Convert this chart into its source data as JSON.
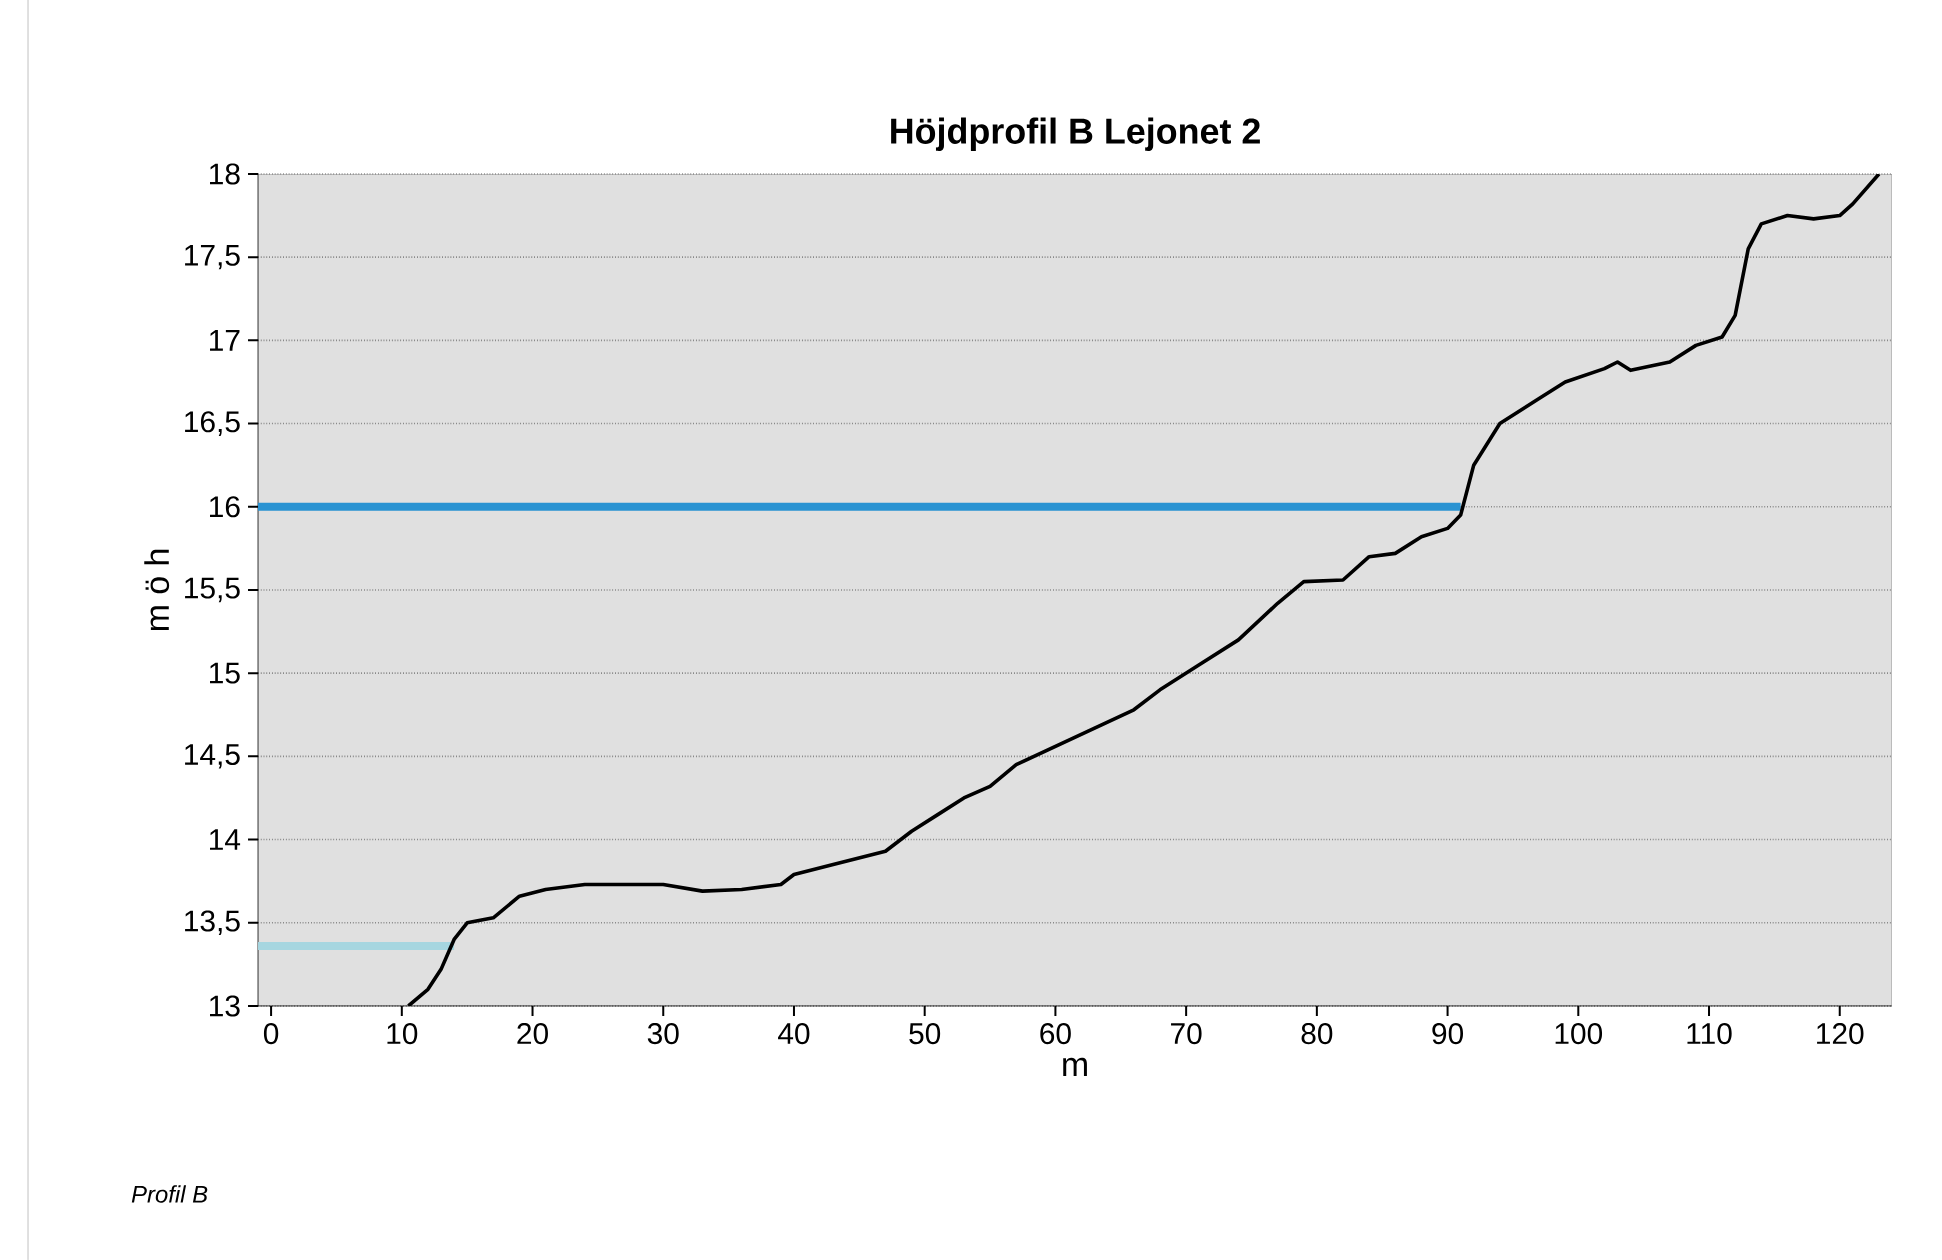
{
  "chart_data": {
    "type": "line",
    "title": "Höjdprofil B Lejonet 2",
    "xlabel": "m",
    "ylabel": "m ö h",
    "annotations": [
      "Profil B"
    ],
    "xlim": [
      -1,
      124
    ],
    "ylim": [
      13,
      18
    ],
    "xticks": [
      0,
      10,
      20,
      30,
      40,
      50,
      60,
      70,
      80,
      90,
      100,
      110,
      120
    ],
    "yticks": [
      13,
      {
        "value": 13.5,
        "label": "13,5"
      },
      14,
      {
        "value": 14.5,
        "label": "14,5"
      },
      15,
      {
        "value": 15.5,
        "label": "15,5"
      },
      16,
      {
        "value": 16.5,
        "label": "16,5"
      },
      17,
      {
        "value": 17.5,
        "label": "17,5"
      },
      18
    ],
    "grid": "y",
    "marker": "none",
    "line_style": "solid",
    "series": [
      {
        "color": "#2a93d2",
        "x": [
          -1,
          91
        ],
        "values": [
          16,
          16
        ]
      },
      {
        "color": "#a6d6e0",
        "x": [
          -1,
          14
        ],
        "values": [
          13.36,
          13.36
        ]
      },
      {
        "color": "#000000",
        "x": [
          10.5,
          12,
          13,
          14,
          15,
          17,
          19,
          21,
          24,
          30,
          33,
          36,
          39,
          40,
          43,
          47,
          49,
          51,
          53,
          55,
          57,
          60,
          63,
          66,
          68,
          71,
          74,
          77,
          79,
          82,
          84,
          86,
          88,
          90,
          91,
          92,
          94,
          97,
          99,
          102,
          103,
          104,
          107,
          109,
          111,
          112,
          113,
          114,
          116,
          118,
          120,
          121,
          123
        ],
        "values": [
          13,
          13.1,
          13.22,
          13.4,
          13.5,
          13.53,
          13.66,
          13.7,
          13.73,
          13.73,
          13.69,
          13.7,
          13.73,
          13.79,
          13.85,
          13.93,
          14.05,
          14.15,
          14.25,
          14.32,
          14.45,
          14.56,
          14.67,
          14.78,
          14.9,
          15.05,
          15.2,
          15.42,
          15.55,
          15.56,
          15.7,
          15.72,
          15.82,
          15.87,
          15.95,
          16.25,
          16.5,
          16.65,
          16.75,
          16.83,
          16.87,
          16.82,
          16.87,
          16.97,
          17.02,
          17.15,
          17.55,
          17.7,
          17.75,
          17.73,
          17.75,
          17.82,
          18
        ]
      }
    ]
  }
}
